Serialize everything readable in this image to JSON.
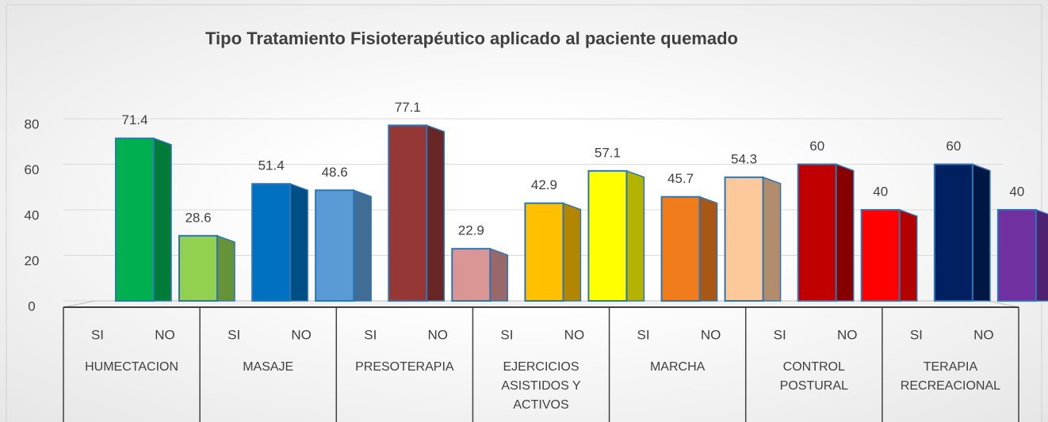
{
  "chart_data": {
    "type": "bar",
    "title": "Tipo Tratamiento Fisioterapéutico aplicado al paciente quemado",
    "groups": [
      "HUMECTACION",
      "MASAJE",
      "PRESOTERAPIA",
      "EJERCICIOS ASISTIDOS Y ACTIVOS",
      "MARCHA",
      "CONTROL POSTURAL",
      "TERAPIA RECREACIONAL"
    ],
    "categories": [
      "SI",
      "NO",
      "SI",
      "NO",
      "SI",
      "NO",
      "SI",
      "NO",
      "SI",
      "NO",
      "SI",
      "NO",
      "SI",
      "NO"
    ],
    "values": [
      71.4,
      28.6,
      51.4,
      48.6,
      77.1,
      22.9,
      42.9,
      57.1,
      45.7,
      54.3,
      60,
      40,
      60,
      40
    ],
    "colors": [
      "#00b050",
      "#92d050",
      "#0070c0",
      "#5b9bd5",
      "#953735",
      "#d99694",
      "#ffc000",
      "#ffff00",
      "#f07c1c",
      "#fdc99b",
      "#c00000",
      "#ff0000",
      "#002060",
      "#7030a0"
    ],
    "ylim": [
      0,
      80
    ],
    "yticks": [
      0,
      20,
      40,
      60,
      80
    ],
    "grid": true
  }
}
